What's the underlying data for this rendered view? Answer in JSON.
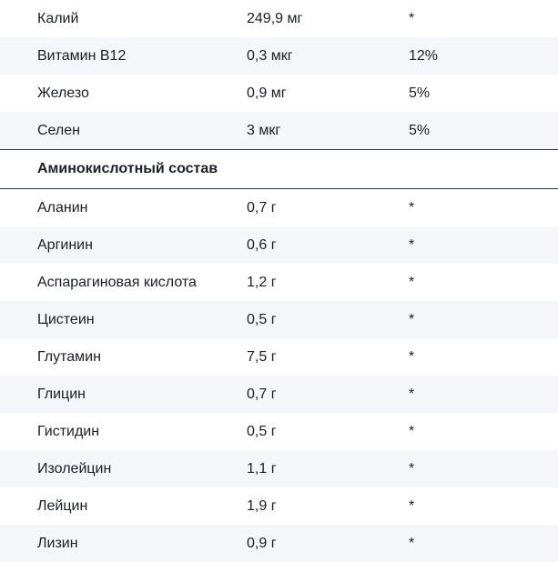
{
  "minerals": [
    {
      "name": "Калий",
      "amount": "249,9 мг",
      "percent": "*"
    },
    {
      "name": "Витамин B12",
      "amount": "0,3 мкг",
      "percent": "12%"
    },
    {
      "name": "Железо",
      "amount": "0,9 мг",
      "percent": "5%"
    },
    {
      "name": "Селен",
      "amount": "3 мкг",
      "percent": "5%"
    }
  ],
  "amino_section": {
    "title": "Аминокислотный состав"
  },
  "amino_acids": [
    {
      "name": "Аланин",
      "amount": "0,7 г",
      "percent": "*"
    },
    {
      "name": "Аргинин",
      "amount": "0,6 г",
      "percent": "*"
    },
    {
      "name": "Аспарагиновая кислота",
      "amount": "1,2 г",
      "percent": "*"
    },
    {
      "name": "Цистеин",
      "amount": "0,5 г",
      "percent": "*"
    },
    {
      "name": "Глутамин",
      "amount": "7,5 г",
      "percent": "*"
    },
    {
      "name": "Глицин",
      "amount": "0,7 г",
      "percent": "*"
    },
    {
      "name": "Гистидин",
      "amount": "0,5 г",
      "percent": "*"
    },
    {
      "name": "Изолейцин",
      "amount": "1,1 г",
      "percent": "*"
    },
    {
      "name": "Лейцин",
      "amount": "1,9 г",
      "percent": "*"
    },
    {
      "name": "Лизин",
      "amount": "0,9 г",
      "percent": "*"
    }
  ]
}
